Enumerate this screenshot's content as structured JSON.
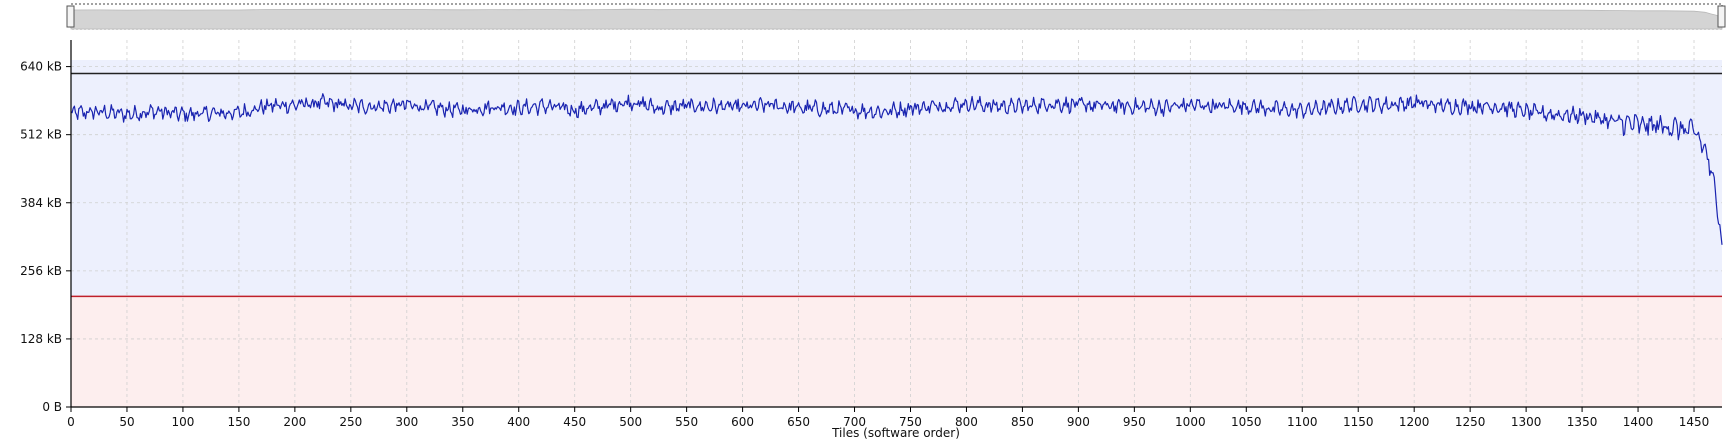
{
  "chart_data": {
    "type": "line",
    "xlabel": "Tiles  (software order)",
    "ylabel": "",
    "xlim": [
      0,
      1475
    ],
    "ylim_kB": [
      0,
      690
    ],
    "x_ticks": [
      0,
      50,
      100,
      150,
      200,
      250,
      300,
      350,
      400,
      450,
      500,
      550,
      600,
      650,
      700,
      750,
      800,
      850,
      900,
      950,
      1000,
      1050,
      1100,
      1150,
      1200,
      1250,
      1300,
      1350,
      1400,
      1450
    ],
    "y_ticks": [
      {
        "value": 0,
        "label": "0 B"
      },
      {
        "value": 128,
        "label": "128 kB"
      },
      {
        "value": 256,
        "label": "256 kB"
      },
      {
        "value": 384,
        "label": "384 kB"
      },
      {
        "value": 512,
        "label": "512 kB"
      },
      {
        "value": 640,
        "label": "640 kB"
      }
    ],
    "grid": true,
    "reference_lines": [
      {
        "value_kB": 627,
        "color": "#222222"
      },
      {
        "value_kB": 208,
        "color": "#c0202a"
      }
    ],
    "band_colors": {
      "upper": "#edf0fd",
      "lower": "#fdeeee"
    },
    "series": [
      {
        "color": "#1a24b0",
        "x": [
          0,
          25,
          50,
          75,
          100,
          125,
          150,
          175,
          200,
          225,
          250,
          275,
          300,
          325,
          350,
          375,
          400,
          425,
          450,
          475,
          500,
          525,
          550,
          575,
          600,
          625,
          650,
          675,
          700,
          725,
          750,
          775,
          800,
          825,
          850,
          875,
          900,
          925,
          950,
          975,
          1000,
          1025,
          1050,
          1075,
          1100,
          1125,
          1150,
          1175,
          1200,
          1225,
          1250,
          1275,
          1300,
          1325,
          1350,
          1375,
          1400,
          1425,
          1450,
          1460,
          1465,
          1470,
          1475
        ],
        "y": [
          552,
          555,
          550,
          556,
          550,
          552,
          553,
          566,
          568,
          572,
          566,
          565,
          568,
          562,
          558,
          564,
          562,
          566,
          558,
          565,
          574,
          562,
          566,
          565,
          564,
          568,
          562,
          560,
          558,
          555,
          562,
          566,
          570,
          566,
          565,
          570,
          568,
          566,
          565,
          563,
          568,
          565,
          566,
          560,
          558,
          563,
          570,
          568,
          572,
          566,
          566,
          565,
          555,
          550,
          548,
          538,
          530,
          528,
          518,
          485,
          440,
          400,
          305
        ]
      }
    ]
  }
}
